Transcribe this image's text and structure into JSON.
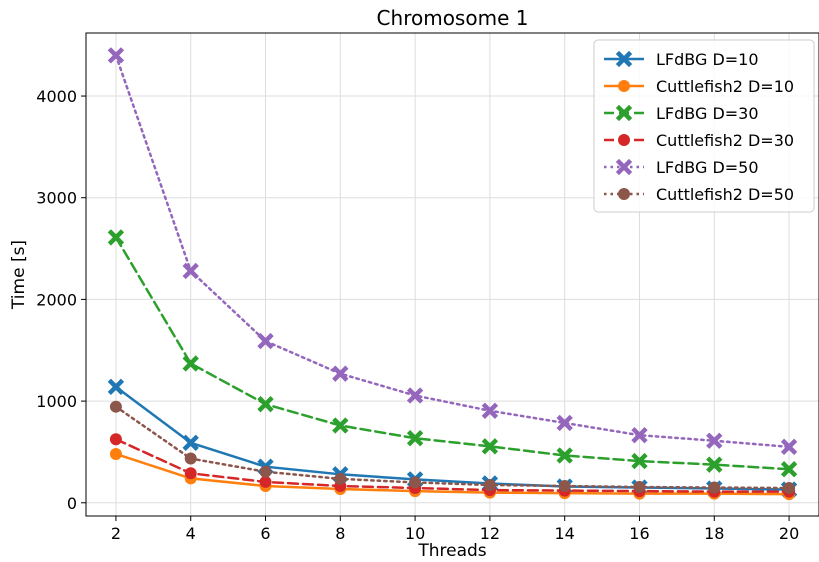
{
  "chart_data": {
    "type": "line",
    "title": "Chromosome 1",
    "xlabel": "Threads",
    "ylabel": "Time [s]",
    "x": [
      2,
      4,
      6,
      8,
      10,
      12,
      14,
      16,
      18,
      20
    ],
    "xlim": [
      1.2,
      20.8
    ],
    "ylim": [
      -130,
      4620
    ],
    "xticks": [
      2,
      4,
      6,
      8,
      10,
      12,
      14,
      16,
      18,
      20
    ],
    "yticks": [
      0,
      1000,
      2000,
      3000,
      4000
    ],
    "grid": true,
    "legend_position": "top-right",
    "series": [
      {
        "name": "LFdBG D=10",
        "color": "#1f77b4",
        "linestyle": "solid",
        "marker": "x-filled",
        "values": [
          1140,
          590,
          355,
          280,
          230,
          190,
          160,
          150,
          140,
          130
        ]
      },
      {
        "name": "Cuttlefish2 D=10",
        "color": "#ff7f0e",
        "linestyle": "solid",
        "marker": "circle",
        "values": [
          480,
          240,
          165,
          135,
          115,
          100,
          95,
          90,
          90,
          85
        ]
      },
      {
        "name": "LFdBG D=30",
        "color": "#2ca02c",
        "linestyle": "dashed",
        "marker": "x-filled",
        "values": [
          2610,
          1370,
          970,
          760,
          635,
          555,
          465,
          410,
          375,
          330
        ]
      },
      {
        "name": "Cuttlefish2 D=30",
        "color": "#d62728",
        "linestyle": "dashed",
        "marker": "circle",
        "values": [
          625,
          290,
          205,
          165,
          145,
          125,
          120,
          115,
          110,
          110
        ]
      },
      {
        "name": "LFdBG D=50",
        "color": "#9467bd",
        "linestyle": "dotted",
        "marker": "x-filled",
        "values": [
          4400,
          2280,
          1590,
          1270,
          1055,
          905,
          785,
          665,
          610,
          550
        ]
      },
      {
        "name": "Cuttlefish2 D=50",
        "color": "#8c564b",
        "linestyle": "dotted",
        "marker": "circle",
        "values": [
          945,
          435,
          305,
          235,
          200,
          175,
          165,
          155,
          150,
          145
        ]
      }
    ]
  }
}
